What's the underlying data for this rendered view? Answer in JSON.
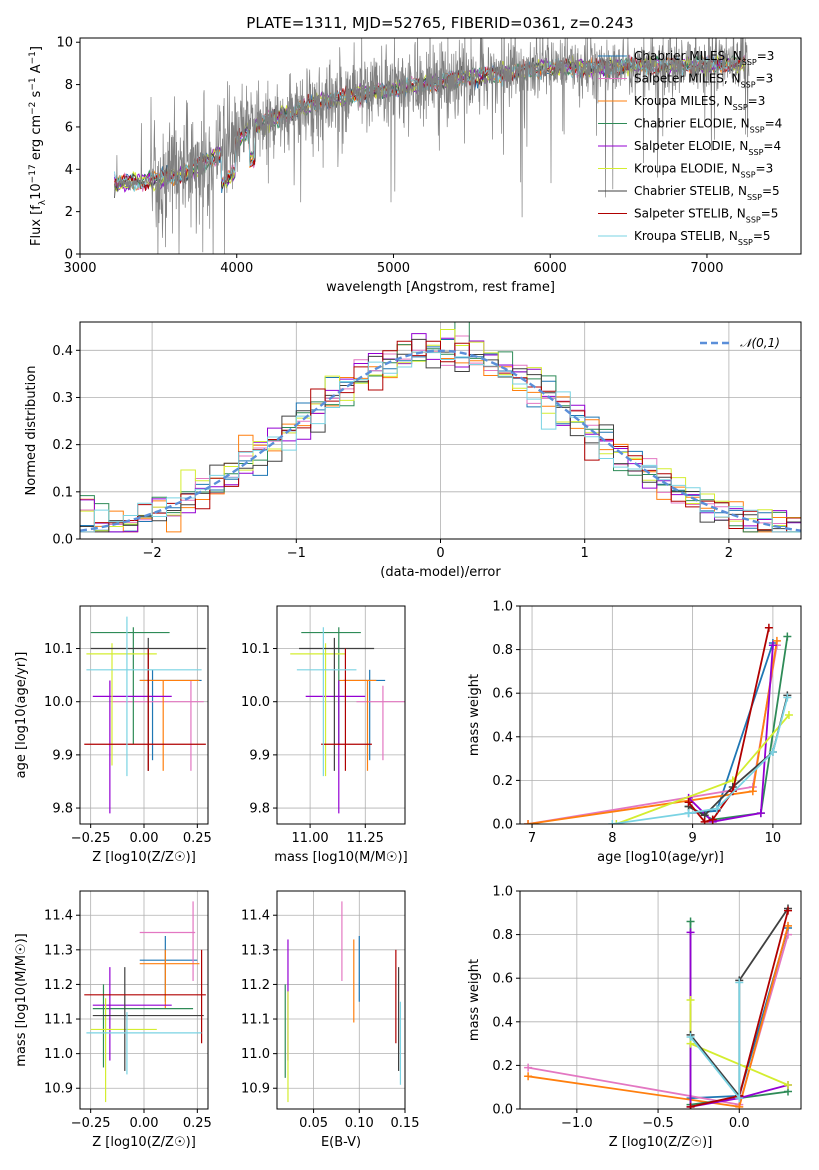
{
  "figure_title": "PLATE=1311, MJD=52765, FIBERID=0361, z=0.243",
  "models": [
    {
      "name": "Chabrier MILES",
      "nssp": "3",
      "color": "#1f77b4"
    },
    {
      "name": "Salpeter MILES",
      "nssp": "3",
      "color": "#e377c2"
    },
    {
      "name": "Kroupa MILES",
      "nssp": "3",
      "color": "#ff7f0e"
    },
    {
      "name": "Chabrier ELODIE",
      "nssp": "4",
      "color": "#2e8b57"
    },
    {
      "name": "Salpeter ELODIE",
      "nssp": "4",
      "color": "#9400d3"
    },
    {
      "name": "Kroupa ELODIE",
      "nssp": "3",
      "color": "#d4ed30"
    },
    {
      "name": "Chabrier STELIB",
      "nssp": "5",
      "color": "#404040"
    },
    {
      "name": "Salpeter STELIB",
      "nssp": "5",
      "color": "#b00000"
    },
    {
      "name": "Kroupa STELIB",
      "nssp": "5",
      "color": "#7ad3e3"
    }
  ],
  "chart_data": [
    {
      "id": "spectrum",
      "type": "line",
      "xlabel": "wavelength [Angstrom, rest frame]",
      "xlim": [
        3000,
        7600
      ],
      "ylim": [
        0,
        10.2
      ],
      "xticks": [
        3000,
        4000,
        5000,
        6000,
        7000
      ],
      "yticks": [
        0,
        2,
        4,
        6,
        8,
        10
      ],
      "data_color": "#808080",
      "continuum_x": [
        3220,
        3500,
        3700,
        3900,
        4100,
        4300,
        4500,
        4800,
        5100,
        5400,
        5700,
        6000,
        6300,
        6600,
        6900,
        7250
      ],
      "continuum_y": [
        3.3,
        3.5,
        3.9,
        4.8,
        6.0,
        6.6,
        7.1,
        7.6,
        7.9,
        8.3,
        8.5,
        8.8,
        8.8,
        8.9,
        8.9,
        9.0
      ]
    },
    {
      "id": "residuals",
      "type": "bar",
      "xlabel": "(data-model)/error",
      "ylabel": "Normed distribution",
      "xlim": [
        -2.5,
        2.5
      ],
      "ylim": [
        0,
        0.46
      ],
      "xticks": [
        -2,
        -1,
        0,
        1,
        2
      ],
      "yticks": [
        0.0,
        0.1,
        0.2,
        0.3,
        0.4
      ],
      "reference": {
        "name": "𝒩(0,1)",
        "color": "#5b8fd9"
      },
      "bin_width": 0.1
    },
    {
      "id": "age_vs_Z",
      "type": "scatter",
      "xlabel": "Z [log10(Z/Z☉)]",
      "ylabel": "age  [log10(age/yr)]",
      "xlim": [
        -0.3,
        0.3
      ],
      "ylim": [
        9.77,
        10.18
      ],
      "xticks": [
        -0.25,
        0.0,
        0.25
      ],
      "xticklabels": [
        "−0.25",
        "0.00",
        "0.25"
      ],
      "yticks": [
        9.8,
        9.9,
        10.0,
        10.1
      ],
      "yticklabels": [
        "9.8",
        "9.9",
        "10.0",
        "10.1"
      ],
      "points": [
        {
          "m": 0,
          "x": 0.04,
          "y": 10.04,
          "ex": [
            -0.02,
            0.27
          ],
          "ey": [
            9.89,
            10.06
          ]
        },
        {
          "m": 1,
          "x": 0.22,
          "y": 10.0,
          "ex": [
            -0.15,
            0.28
          ],
          "ey": [
            9.87,
            10.04
          ]
        },
        {
          "m": 2,
          "x": 0.09,
          "y": 10.04,
          "ex": [
            -0.02,
            0.26
          ],
          "ey": [
            9.87,
            10.04
          ]
        },
        {
          "m": 3,
          "x": -0.05,
          "y": 10.13,
          "ex": [
            -0.25,
            0.12
          ],
          "ey": [
            9.92,
            10.14
          ]
        },
        {
          "m": 4,
          "x": -0.16,
          "y": 10.01,
          "ex": [
            -0.24,
            0.13
          ],
          "ey": [
            9.79,
            10.04
          ]
        },
        {
          "m": 5,
          "x": -0.15,
          "y": 10.09,
          "ex": [
            -0.27,
            0.06
          ],
          "ey": [
            9.88,
            10.11
          ]
        },
        {
          "m": 6,
          "x": 0.02,
          "y": 10.1,
          "ex": [
            -0.25,
            0.29
          ],
          "ey": [
            9.87,
            10.12
          ]
        },
        {
          "m": 7,
          "x": 0.02,
          "y": 9.92,
          "ex": [
            -0.28,
            0.29
          ],
          "ey": [
            9.87,
            10.1
          ]
        },
        {
          "m": 8,
          "x": -0.08,
          "y": 10.06,
          "ex": [
            -0.27,
            0.27
          ],
          "ey": [
            9.86,
            10.16
          ]
        }
      ]
    },
    {
      "id": "age_vs_mass",
      "type": "scatter",
      "xlabel": "mass [log10(M/M☉)]",
      "xlim": [
        10.85,
        11.43
      ],
      "ylim": [
        9.77,
        10.18
      ],
      "xticks": [
        11.0,
        11.25
      ],
      "xticklabels": [
        "11.00",
        "11.25"
      ],
      "yticks": [
        9.8,
        9.9,
        10.0,
        10.1
      ],
      "yticklabels": [
        "9.8",
        "9.9",
        "10.0",
        "10.1"
      ],
      "points": [
        {
          "m": 0,
          "x": 11.27,
          "y": 10.04,
          "ex": [
            11.15,
            11.34
          ],
          "ey": [
            9.89,
            10.06
          ]
        },
        {
          "m": 1,
          "x": 11.33,
          "y": 10.0,
          "ex": [
            11.21,
            11.44
          ],
          "ey": [
            9.89,
            10.03
          ]
        },
        {
          "m": 2,
          "x": 11.26,
          "y": 10.04,
          "ex": [
            11.13,
            11.3
          ],
          "ey": [
            9.87,
            10.04
          ]
        },
        {
          "m": 3,
          "x": 11.13,
          "y": 10.13,
          "ex": [
            10.96,
            11.23
          ],
          "ey": [
            9.92,
            10.14
          ]
        },
        {
          "m": 4,
          "x": 11.13,
          "y": 10.01,
          "ex": [
            10.98,
            11.25
          ],
          "ey": [
            9.79,
            10.04
          ]
        },
        {
          "m": 5,
          "x": 11.07,
          "y": 10.09,
          "ex": [
            10.91,
            11.16
          ],
          "ey": [
            9.86,
            10.11
          ]
        },
        {
          "m": 6,
          "x": 11.11,
          "y": 10.1,
          "ex": [
            10.95,
            11.29
          ],
          "ey": [
            9.87,
            10.12
          ]
        },
        {
          "m": 7,
          "x": 11.16,
          "y": 9.92,
          "ex": [
            11.05,
            11.28
          ],
          "ey": [
            9.87,
            10.1
          ]
        },
        {
          "m": 8,
          "x": 11.06,
          "y": 10.06,
          "ex": [
            10.94,
            11.21
          ],
          "ey": [
            9.86,
            10.14
          ]
        }
      ]
    },
    {
      "id": "mass_weight_vs_age",
      "type": "line",
      "xlabel": "age  [log10(age/yr)]",
      "ylabel": "mass weight",
      "xlim": [
        6.85,
        10.35
      ],
      "ylim": [
        0,
        1.0
      ],
      "xticks": [
        7,
        8,
        9,
        10
      ],
      "yticks": [
        0.0,
        0.2,
        0.4,
        0.6,
        0.8,
        1.0
      ],
      "series": [
        {
          "m": 0,
          "x": [
            8.95,
            9.3,
            10.0
          ],
          "y": [
            0.05,
            0.06,
            0.83
          ]
        },
        {
          "m": 1,
          "x": [
            6.95,
            9.75,
            10.05
          ],
          "y": [
            0.0,
            0.17,
            0.82
          ]
        },
        {
          "m": 2,
          "x": [
            6.95,
            9.75,
            10.05
          ],
          "y": [
            0.0,
            0.15,
            0.84
          ]
        },
        {
          "m": 3,
          "x": [
            8.95,
            9.25,
            9.85,
            10.18
          ],
          "y": [
            0.08,
            0.02,
            0.05,
            0.86
          ]
        },
        {
          "m": 4,
          "x": [
            8.95,
            9.25,
            9.85,
            10.0
          ],
          "y": [
            0.12,
            0.01,
            0.05,
            0.82
          ]
        },
        {
          "m": 5,
          "x": [
            8.05,
            9.5,
            10.2
          ],
          "y": [
            0.0,
            0.2,
            0.5
          ]
        },
        {
          "m": 6,
          "x": [
            8.95,
            9.15,
            9.5,
            10.0,
            10.18
          ],
          "y": [
            0.08,
            0.04,
            0.17,
            0.33,
            0.59
          ]
        },
        {
          "m": 7,
          "x": [
            8.95,
            9.15,
            9.25,
            9.5,
            9.95
          ],
          "y": [
            0.1,
            0.01,
            0.02,
            0.15,
            0.9
          ]
        },
        {
          "m": 8,
          "x": [
            8.0,
            8.95,
            9.3,
            10.0,
            10.18
          ],
          "y": [
            0.0,
            0.05,
            0.07,
            0.33,
            0.58
          ]
        }
      ]
    },
    {
      "id": "mass_vs_Z",
      "type": "scatter",
      "xlabel": "Z [log10(Z/Z☉)]",
      "ylabel": "mass [log10(M/M☉)]",
      "xlim": [
        -0.3,
        0.3
      ],
      "ylim": [
        10.84,
        11.47
      ],
      "xticks": [
        -0.25,
        0.0,
        0.25
      ],
      "xticklabels": [
        "−0.25",
        "0.00",
        "0.25"
      ],
      "yticks": [
        10.9,
        11.0,
        11.1,
        11.2,
        11.3,
        11.4
      ],
      "yticklabels": [
        "10.9",
        "11.0",
        "11.1",
        "11.2",
        "11.3",
        "11.4"
      ],
      "points": [
        {
          "m": 0,
          "x": 0.1,
          "y": 11.27,
          "ex": [
            -0.02,
            0.25
          ],
          "ey": [
            11.15,
            11.34
          ]
        },
        {
          "m": 1,
          "x": 0.23,
          "y": 11.35,
          "ex": [
            -0.02,
            0.24
          ],
          "ey": [
            11.21,
            11.44
          ]
        },
        {
          "m": 2,
          "x": 0.1,
          "y": 11.26,
          "ex": [
            -0.02,
            0.26
          ],
          "ey": [
            11.13,
            11.3
          ]
        },
        {
          "m": 3,
          "x": -0.19,
          "y": 11.13,
          "ex": [
            -0.24,
            0.23
          ],
          "ey": [
            10.96,
            11.2
          ]
        },
        {
          "m": 4,
          "x": -0.16,
          "y": 11.14,
          "ex": [
            -0.24,
            0.13
          ],
          "ey": [
            10.98,
            11.25
          ]
        },
        {
          "m": 5,
          "x": -0.18,
          "y": 11.07,
          "ex": [
            -0.25,
            0.06
          ],
          "ey": [
            10.86,
            11.16
          ]
        },
        {
          "m": 6,
          "x": -0.09,
          "y": 11.11,
          "ex": [
            -0.24,
            0.28
          ],
          "ey": [
            10.95,
            11.25
          ]
        },
        {
          "m": 7,
          "x": 0.27,
          "y": 11.17,
          "ex": [
            -0.28,
            0.29
          ],
          "ey": [
            11.03,
            11.3
          ]
        },
        {
          "m": 8,
          "x": -0.08,
          "y": 11.06,
          "ex": [
            -0.27,
            0.27
          ],
          "ey": [
            10.94,
            11.12
          ]
        }
      ]
    },
    {
      "id": "mass_vs_ebv",
      "type": "scatter",
      "xlabel": "E(B-V)",
      "xlim": [
        0.01,
        0.15
      ],
      "ylim": [
        10.84,
        11.47
      ],
      "xticks": [
        0.05,
        0.1,
        0.15
      ],
      "xticklabels": [
        "0.05",
        "0.10",
        "0.15"
      ],
      "yticks": [
        10.9,
        11.0,
        11.1,
        11.2,
        11.3,
        11.4
      ],
      "yticklabels": [
        "10.9",
        "11.0",
        "11.1",
        "11.2",
        "11.3",
        "11.4"
      ],
      "points": [
        {
          "m": 0,
          "x": 0.1,
          "y": 11.27,
          "ey": [
            11.15,
            11.34
          ]
        },
        {
          "m": 1,
          "x": 0.081,
          "y": 11.33,
          "ey": [
            11.21,
            11.44
          ]
        },
        {
          "m": 2,
          "x": 0.094,
          "y": 11.2,
          "ey": [
            11.09,
            11.33
          ]
        },
        {
          "m": 3,
          "x": 0.019,
          "y": 11.1,
          "ey": [
            10.93,
            11.2
          ]
        },
        {
          "m": 4,
          "x": 0.022,
          "y": 11.15,
          "ey": [
            10.98,
            11.33
          ]
        },
        {
          "m": 5,
          "x": 0.022,
          "y": 11.05,
          "ey": [
            10.86,
            11.18
          ]
        },
        {
          "m": 6,
          "x": 0.143,
          "y": 11.1,
          "ey": [
            10.95,
            11.25
          ]
        },
        {
          "m": 7,
          "x": 0.14,
          "y": 11.17,
          "ey": [
            11.03,
            11.3
          ]
        },
        {
          "m": 8,
          "x": 0.145,
          "y": 11.0,
          "ey": [
            10.91,
            11.15
          ]
        }
      ]
    },
    {
      "id": "mass_weight_vs_Z",
      "type": "line",
      "xlabel": "Z [log10(Z/Z☉)]",
      "ylabel": "mass weight",
      "xlim": [
        -1.35,
        0.38
      ],
      "ylim": [
        0,
        1.0
      ],
      "xticks": [
        -1.0,
        -0.5,
        0.0
      ],
      "xticklabels": [
        "−1.0",
        "−0.5",
        "0.0"
      ],
      "yticks": [
        0.0,
        0.2,
        0.4,
        0.6,
        0.8,
        1.0
      ],
      "series": [
        {
          "m": 0,
          "x": [
            -0.3,
            0.0,
            0.3
          ],
          "y": [
            0.05,
            0.06,
            0.83
          ]
        },
        {
          "m": 1,
          "x": [
            -1.3,
            0.0,
            0.3
          ],
          "y": [
            0.19,
            0.02,
            0.8
          ]
        },
        {
          "m": 2,
          "x": [
            -1.3,
            0.0,
            0.3
          ],
          "y": [
            0.15,
            0.01,
            0.84
          ]
        },
        {
          "m": 3,
          "x": [
            -0.3,
            -0.3,
            0.0,
            0.3
          ],
          "y": [
            0.86,
            0.02,
            0.05,
            0.08
          ]
        },
        {
          "m": 4,
          "x": [
            -0.3,
            -0.3,
            0.0,
            0.3
          ],
          "y": [
            0.81,
            0.01,
            0.05,
            0.11
          ]
        },
        {
          "m": 5,
          "x": [
            -0.3,
            -0.3,
            0.3
          ],
          "y": [
            0.5,
            0.3,
            0.11
          ]
        },
        {
          "m": 6,
          "x": [
            -0.3,
            0.0,
            0.0,
            0.3
          ],
          "y": [
            0.34,
            0.06,
            0.59,
            0.92
          ]
        },
        {
          "m": 7,
          "x": [
            -0.3,
            0.0,
            0.3
          ],
          "y": [
            0.01,
            0.06,
            0.91
          ]
        },
        {
          "m": 8,
          "x": [
            -0.3,
            0.0,
            0.0
          ],
          "y": [
            0.33,
            0.05,
            0.58
          ]
        }
      ]
    }
  ]
}
